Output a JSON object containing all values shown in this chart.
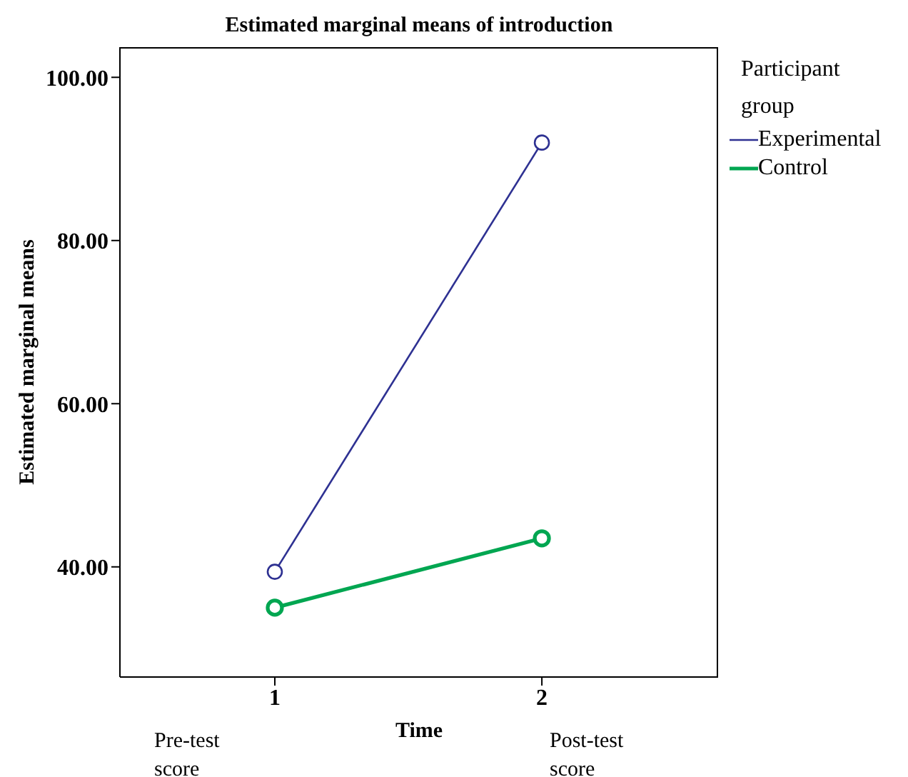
{
  "chart_data": {
    "type": "line",
    "title": "Estimated marginal means of introduction",
    "xlabel": "Time",
    "ylabel": "Estimated marginal means",
    "legend_title": "Participant group",
    "x": [
      1,
      2
    ],
    "series": [
      {
        "name": "Experimental",
        "color": "#2e3192",
        "values": [
          39.4,
          92.0
        ]
      },
      {
        "name": "Control",
        "color": "#00a651",
        "values": [
          35.0,
          43.5
        ]
      }
    ],
    "xlim": [
      0.42,
      2.66
    ],
    "xticks": [
      1,
      2
    ],
    "ylim": [
      26.5,
      103.7
    ],
    "yticks": [
      {
        "value": 40,
        "label": "40.00"
      },
      {
        "value": 60,
        "label": "60.00"
      },
      {
        "value": 80,
        "label": "80.00"
      },
      {
        "value": 100,
        "label": "100.00"
      }
    ],
    "marker": "circle",
    "line_style": "solid",
    "legend": "top right",
    "grid": false,
    "annotations": [
      "Pre-test score",
      "Post-test score"
    ]
  }
}
